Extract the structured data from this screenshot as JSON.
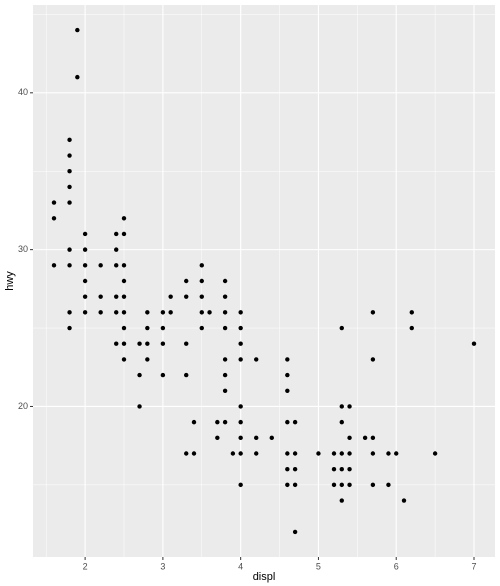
{
  "chart_data": {
    "type": "scatter",
    "x_label": "displ",
    "y_label": "hwy",
    "x": [
      1.6,
      1.6,
      1.6,
      1.8,
      1.8,
      1.8,
      1.8,
      1.8,
      1.8,
      1.8,
      1.8,
      1.8,
      1.9,
      1.9,
      2.0,
      2.0,
      2.0,
      2.0,
      2.0,
      2.0,
      2.2,
      2.2,
      2.2,
      2.4,
      2.4,
      2.4,
      2.4,
      2.4,
      2.4,
      2.5,
      2.5,
      2.5,
      2.5,
      2.5,
      2.5,
      2.5,
      2.5,
      2.5,
      2.7,
      2.7,
      2.7,
      2.8,
      2.8,
      2.8,
      2.8,
      3.0,
      3.0,
      3.0,
      3.0,
      3.1,
      3.1,
      3.3,
      3.3,
      3.3,
      3.3,
      3.3,
      3.4,
      3.4,
      3.5,
      3.5,
      3.5,
      3.5,
      3.5,
      3.6,
      3.7,
      3.7,
      3.8,
      3.8,
      3.8,
      3.8,
      3.8,
      3.8,
      3.8,
      3.8,
      3.9,
      4.0,
      4.0,
      4.0,
      4.0,
      4.0,
      4.0,
      4.0,
      4.0,
      4.0,
      4.2,
      4.2,
      4.2,
      4.4,
      4.6,
      4.6,
      4.6,
      4.6,
      4.6,
      4.6,
      4.6,
      4.7,
      4.7,
      4.7,
      4.7,
      4.7,
      5.0,
      5.2,
      5.2,
      5.2,
      5.3,
      5.3,
      5.3,
      5.3,
      5.3,
      5.3,
      5.3,
      5.4,
      5.4,
      5.4,
      5.4,
      5.4,
      5.6,
      5.7,
      5.7,
      5.7,
      5.7,
      5.7,
      5.9,
      5.9,
      6.0,
      6.1,
      6.2,
      6.2,
      6.5,
      7.0
    ],
    "y": [
      33,
      32,
      29,
      37,
      36,
      35,
      34,
      33,
      30,
      29,
      26,
      25,
      44,
      41,
      31,
      30,
      29,
      28,
      27,
      26,
      29,
      27,
      26,
      31,
      30,
      29,
      27,
      26,
      24,
      32,
      31,
      29,
      28,
      27,
      26,
      25,
      24,
      23,
      24,
      22,
      20,
      26,
      25,
      24,
      23,
      26,
      25,
      24,
      22,
      27,
      26,
      28,
      27,
      24,
      22,
      17,
      19,
      17,
      29,
      28,
      27,
      26,
      25,
      26,
      19,
      18,
      28,
      27,
      26,
      25,
      23,
      22,
      21,
      19,
      17,
      26,
      25,
      24,
      23,
      20,
      19,
      18,
      17,
      15,
      23,
      18,
      17,
      18,
      23,
      22,
      21,
      19,
      17,
      16,
      15,
      19,
      17,
      16,
      15,
      12,
      17,
      17,
      16,
      15,
      25,
      20,
      19,
      17,
      16,
      15,
      14,
      20,
      18,
      17,
      16,
      15,
      18,
      26,
      23,
      18,
      17,
      15,
      17,
      15,
      17,
      14,
      26,
      25,
      17,
      24
    ],
    "xlim": [
      1.33,
      7.27
    ],
    "ylim": [
      10.4,
      45.6
    ],
    "xticks": [
      2,
      3,
      4,
      5,
      6,
      7
    ],
    "yticks": [
      20,
      30,
      40
    ],
    "grid": true,
    "color": "#000000"
  }
}
